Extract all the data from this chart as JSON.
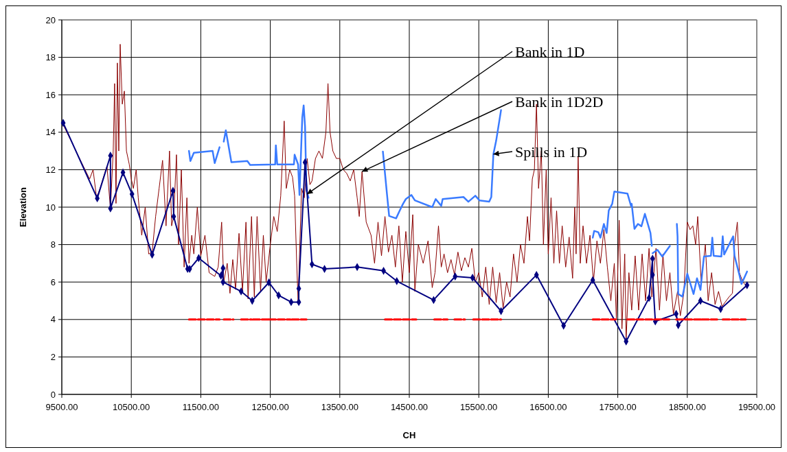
{
  "chart_data": {
    "type": "line",
    "xlabel": "CH",
    "ylabel": "Elevation",
    "xlim": [
      9500,
      19500
    ],
    "xticks": [
      {
        "value": 9500,
        "label": "9500.00"
      },
      {
        "value": 10500,
        "label": "10500.00"
      },
      {
        "value": 11500,
        "label": "11500.00"
      },
      {
        "value": 12500,
        "label": "12500.00"
      },
      {
        "value": 13500,
        "label": "13500.00"
      },
      {
        "value": 14500,
        "label": "14500.00"
      },
      {
        "value": 15500,
        "label": "15500.00"
      },
      {
        "value": 16500,
        "label": "16500.00"
      },
      {
        "value": 17500,
        "label": "17500.00"
      },
      {
        "value": 18500,
        "label": "18500.00"
      },
      {
        "value": 19500,
        "label": "19500.00"
      }
    ],
    "ylim": [
      0,
      20
    ],
    "yticks": [
      0,
      2,
      4,
      6,
      8,
      10,
      12,
      14,
      16,
      18,
      20
    ],
    "grid": true,
    "series": [
      {
        "color": "#8b0000",
        "marker": "none",
        "line_style": "solid",
        "x": [
          9520,
          9900,
          9950,
          10000,
          10050,
          10150,
          10200,
          10240,
          10260,
          10280,
          10300,
          10320,
          10340,
          10370,
          10400,
          10430,
          10470,
          10500,
          10530,
          10570,
          10600,
          10650,
          10700,
          10750,
          10800,
          10850,
          10900,
          10950,
          11000,
          11050,
          11080,
          11110,
          11150,
          11180,
          11220,
          11260,
          11300,
          11330,
          11370,
          11400,
          11450,
          11500,
          11560,
          11620,
          11700,
          11750,
          11800,
          11830,
          11880,
          11920,
          11960,
          12000,
          12050,
          12100,
          12150,
          12180,
          12230,
          12270,
          12310,
          12360,
          12400,
          12440,
          12500,
          12550,
          12600,
          12650,
          12700,
          12730,
          12780,
          12820,
          12850,
          12880,
          12900,
          12950,
          12990,
          13030,
          13070,
          13100,
          13150,
          13200,
          13250,
          13300,
          13330,
          13360,
          13400,
          13450,
          13500,
          13550,
          13600,
          13650,
          13700,
          13750,
          13780,
          13820,
          13880,
          13950,
          14000,
          14050,
          14100,
          14150,
          14200,
          14250,
          14300,
          14350,
          14400,
          14450,
          14500,
          14550,
          14580,
          14630,
          14700,
          14770,
          14830,
          14870,
          14920,
          14960,
          15000,
          15050,
          15100,
          15150,
          15200,
          15250,
          15300,
          15350,
          15400,
          15450,
          15500,
          15550,
          15600,
          15650,
          15700,
          15750,
          15800,
          15850,
          15900,
          15950,
          16000,
          16050,
          16100,
          16150,
          16200,
          16230,
          16270,
          16300,
          16330,
          16360,
          16400,
          16430,
          16470,
          16500,
          16540,
          16580,
          16620,
          16660,
          16700,
          16750,
          16800,
          16850,
          16880,
          16900,
          16930,
          16960,
          17000,
          17050,
          17100,
          17150,
          17200,
          17250,
          17300,
          17350,
          17400,
          17450,
          17480,
          17520,
          17560,
          17600,
          17620,
          17660,
          17700,
          17750,
          17800,
          17850,
          17900,
          17950,
          17990,
          18050,
          18100,
          18150,
          18200,
          18250,
          18300,
          18360,
          18400,
          18450,
          18500,
          18540,
          18580,
          18620,
          18650,
          18700,
          18760,
          18800,
          18850,
          18900,
          18950,
          19000,
          19100,
          19150,
          19180,
          19220,
          19250,
          19300,
          19350
        ],
        "values": [
          14.4,
          11.5,
          12.0,
          10.5,
          11.0,
          12.2,
          9.9,
          13.0,
          16.6,
          10.2,
          17.7,
          13.0,
          18.7,
          15.5,
          16.2,
          13.0,
          12.3,
          11.5,
          11.0,
          12.0,
          10.5,
          8.5,
          10.0,
          7.5,
          7.6,
          9.5,
          11.0,
          12.5,
          9.0,
          13.0,
          9.0,
          9.5,
          12.8,
          8.0,
          12.0,
          6.8,
          10.5,
          7.0,
          8.5,
          7.5,
          10.0,
          7.4,
          8.5,
          6.5,
          6.3,
          6.8,
          9.2,
          6.0,
          7.0,
          5.4,
          7.2,
          5.6,
          8.6,
          5.5,
          9.2,
          5.1,
          9.5,
          5.2,
          9.5,
          5.5,
          8.5,
          6.0,
          8.0,
          9.5,
          8.7,
          10.6,
          14.6,
          11.0,
          12.0,
          11.6,
          10.6,
          7.0,
          5.0,
          11.0,
          10.5,
          12.6,
          11.2,
          11.4,
          12.6,
          13.0,
          12.6,
          14.0,
          16.6,
          14.0,
          13.0,
          12.6,
          12.6,
          12.0,
          11.8,
          11.4,
          12.0,
          10.5,
          9.5,
          11.9,
          9.2,
          8.5,
          7.0,
          9.2,
          7.4,
          9.5,
          7.6,
          8.5,
          6.8,
          9.0,
          6.0,
          8.7,
          6.5,
          9.6,
          5.5,
          8.0,
          7.0,
          8.2,
          5.7,
          6.5,
          9.0,
          6.8,
          7.5,
          6.5,
          7.2,
          6.4,
          7.6,
          6.6,
          7.3,
          6.8,
          7.8,
          6.0,
          6.5,
          5.2,
          6.8,
          4.8,
          6.8,
          4.9,
          6.5,
          4.6,
          6.0,
          5.2,
          7.5,
          6.0,
          8.0,
          7.0,
          9.5,
          8.2,
          11.5,
          12.0,
          15.5,
          11.0,
          13.0,
          8.0,
          12.0,
          7.5,
          10.5,
          7.0,
          9.8,
          7.0,
          9.0,
          6.8,
          8.4,
          6.2,
          10.0,
          7.5,
          12.7,
          7.0,
          9.0,
          7.0,
          8.5,
          6.0,
          8.2,
          7.0,
          8.8,
          6.8,
          5.0,
          7.0,
          4.0,
          9.3,
          3.5,
          7.5,
          2.9,
          6.5,
          4.5,
          7.4,
          4.5,
          7.5,
          5.0,
          7.8,
          5.2,
          7.8,
          4.5,
          7.5,
          5.0,
          6.5,
          4.3,
          5.5,
          4.2,
          5.4,
          9.2,
          8.8,
          9.0,
          8.0,
          9.5,
          6.0,
          8.0,
          5.0,
          6.5,
          4.8,
          5.5,
          4.7,
          5.2,
          5.4,
          8.0,
          9.2,
          6.5,
          6.0,
          5.8
        ]
      },
      {
        "color": "#3a7bff",
        "marker": "none",
        "line_style": "solid",
        "x": [
          11330,
          11350,
          11400,
          11670,
          11700,
          11770,
          11800,
          11830,
          11860,
          11940,
          12170,
          12210,
          12570,
          12580,
          12600,
          12840,
          12850,
          12900,
          12920,
          12960,
          12980,
          13000,
          13020,
          13050,
          13100,
          14120,
          14180,
          14210,
          14310,
          14360,
          14410,
          14450,
          14530,
          14580,
          14830,
          14880,
          14960,
          14980,
          15280,
          15350,
          15450,
          15510,
          15650,
          15680,
          15710,
          15750,
          15820,
          15830,
          17140,
          17160,
          17220,
          17250,
          17300,
          17340,
          17370,
          17420,
          17450,
          17640,
          17690,
          17700,
          17740,
          17790,
          17840,
          17890,
          17970,
          17990,
          17995,
          18000,
          18070,
          18140,
          18250,
          18300,
          18350,
          18360,
          18370,
          18430,
          18500,
          18590,
          18640,
          18690,
          18730,
          18740,
          18840,
          18860,
          18880,
          18990,
          19010,
          19030,
          19160,
          19180,
          19250,
          19280,
          19360
        ],
        "values": [
          13.0,
          12.46,
          12.9,
          13.0,
          12.35,
          13.2,
          null,
          13.5,
          14.1,
          12.4,
          12.46,
          12.25,
          12.28,
          13.3,
          12.28,
          12.28,
          12.8,
          12.28,
          10.65,
          14.78,
          15.43,
          14.3,
          10.9,
          10.5,
          null,
          12.97,
          10.65,
          9.53,
          9.4,
          9.8,
          10.18,
          10.43,
          10.65,
          10.36,
          10.0,
          10.43,
          10.07,
          10.43,
          10.54,
          10.29,
          10.61,
          10.36,
          10.29,
          10.54,
          12.83,
          13.55,
          15.18,
          null,
          8.37,
          8.73,
          8.66,
          8.37,
          9.1,
          8.62,
          9.82,
          10.18,
          10.83,
          10.72,
          10.07,
          10.18,
          8.84,
          9.1,
          8.98,
          9.64,
          8.62,
          7.93,
          null,
          7.54,
          7.72,
          7.36,
          7.93,
          null,
          9.1,
          8.44,
          5.36,
          5.22,
          6.45,
          5.36,
          6.2,
          5.58,
          7.03,
          7.36,
          7.4,
          8.37,
          7.4,
          7.36,
          8.44,
          7.47,
          8.44,
          7.4,
          6.38,
          5.9,
          6.56
        ]
      },
      {
        "color": "#000080",
        "marker": "diamond",
        "line_style": "solid",
        "x": [
          9520,
          10010,
          10200,
          10200,
          10380,
          10510,
          10800,
          11100,
          11110,
          11310,
          11340,
          11470,
          11790,
          11820,
          11820,
          12080,
          12240,
          12480,
          12620,
          12800,
          12910,
          12910,
          13000,
          13100,
          13280,
          13750,
          14130,
          14320,
          14850,
          15160,
          15410,
          15820,
          16330,
          16720,
          17140,
          17620,
          17950,
          18000,
          18000,
          18040,
          18340,
          18370,
          18690,
          18980,
          19360
        ],
        "values": [
          14.5,
          10.47,
          12.75,
          9.93,
          11.85,
          10.7,
          7.46,
          10.87,
          9.5,
          6.7,
          6.7,
          7.28,
          6.34,
          6.74,
          6.0,
          5.5,
          5.0,
          5.98,
          5.29,
          4.93,
          4.93,
          5.65,
          12.39,
          6.95,
          6.7,
          6.8,
          6.6,
          6.05,
          5.04,
          6.3,
          6.23,
          4.45,
          6.38,
          3.67,
          6.1,
          2.83,
          5.15,
          7.25,
          6.38,
          3.9,
          4.3,
          3.7,
          5.0,
          4.56,
          5.83
        ]
      },
      {
        "color": "#ff0000",
        "marker": "none",
        "line_style": "dashed",
        "x": [
          11330,
          11770,
          11780,
          11830,
          11970,
          11980,
          12080,
          12230,
          12240,
          12250,
          12470,
          12475,
          12480,
          12790,
          12800,
          12810,
          13020,
          13100,
          14150,
          14600,
          14700,
          14860,
          15050,
          15100,
          15150,
          15300,
          15350,
          15420,
          15820,
          16000,
          17140,
          17470,
          17550,
          17640,
          18240,
          18300,
          18340,
          18700,
          18705,
          18710,
          18930,
          18970,
          19010,
          19340
        ],
        "values": [
          4,
          4,
          null,
          4,
          4,
          null,
          4,
          4,
          null,
          4,
          4,
          null,
          4,
          4,
          null,
          4,
          4,
          null,
          4,
          4,
          null,
          4,
          4,
          null,
          4,
          4,
          null,
          4,
          4,
          null,
          4,
          4,
          null,
          4,
          4,
          null,
          4,
          4,
          null,
          4,
          4,
          null,
          4,
          4
        ]
      }
    ],
    "annotations": [
      {
        "text": "Bank in 1D",
        "x": 13030,
        "y": 10.7
      },
      {
        "text": "Bank in 1D2D",
        "x": 13820,
        "y": 11.9
      },
      {
        "text": "Spills in 1D",
        "x": 15710,
        "y": 12.83
      }
    ]
  }
}
